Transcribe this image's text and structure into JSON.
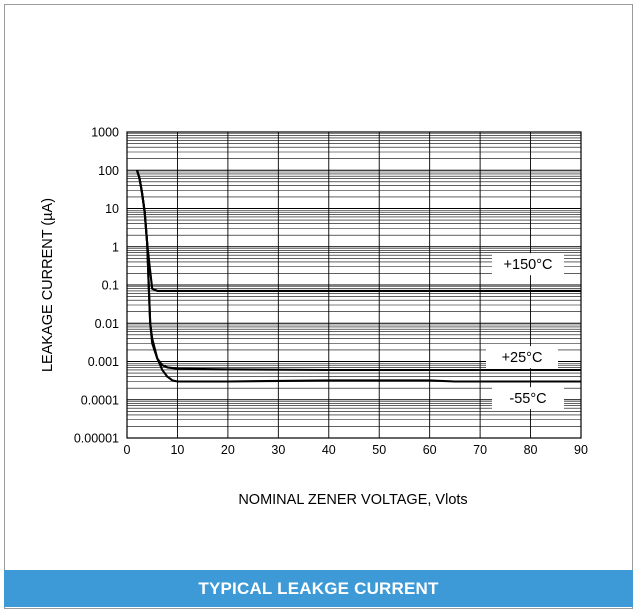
{
  "chart_data": {
    "type": "line",
    "title": "TYPICAL LEAKGE CURRENT",
    "xlabel": "NOMINAL ZENER VOLTAGE, Vlots",
    "ylabel": "LEAKAGE CURRENT (µA)",
    "xlim": [
      0,
      90
    ],
    "ylim": [
      1e-05,
      1000
    ],
    "yscale": "log",
    "grid": true,
    "x_ticks": [
      "0",
      "10",
      "20",
      "30",
      "40",
      "50",
      "60",
      "70",
      "80",
      "90"
    ],
    "y_ticks": [
      "0.00001",
      "0.0001",
      "0.001",
      "0.01",
      "0.1",
      "1",
      "10",
      "100",
      "1000"
    ],
    "series": [
      {
        "name": "+150°C",
        "x": [
          2,
          2.5,
          3,
          3.5,
          4,
          4.5,
          5,
          6,
          8,
          10,
          20,
          40,
          60,
          80,
          90
        ],
        "y": [
          100,
          60,
          25,
          8,
          1.2,
          0.3,
          0.08,
          0.07,
          0.07,
          0.07,
          0.07,
          0.07,
          0.07,
          0.07,
          0.07
        ]
      },
      {
        "name": "+25°C",
        "x": [
          2,
          2.5,
          3,
          3.5,
          4,
          4.3,
          4.6,
          5,
          6,
          7,
          8,
          10,
          20,
          40,
          60,
          80,
          90
        ],
        "y": [
          100,
          60,
          25,
          8,
          1.2,
          0.1,
          0.01,
          0.003,
          0.0012,
          0.0008,
          0.0007,
          0.00065,
          0.00062,
          0.0006,
          0.0006,
          0.0006,
          0.0006
        ]
      },
      {
        "name": "-55°C",
        "x": [
          2,
          2.5,
          3,
          3.5,
          4,
          4.3,
          4.6,
          5,
          6,
          7,
          8,
          9,
          10,
          15,
          20,
          40,
          50,
          60,
          65,
          70,
          80,
          90
        ],
        "y": [
          100,
          60,
          25,
          8,
          1.2,
          0.1,
          0.01,
          0.004,
          0.0012,
          0.0006,
          0.0004,
          0.00032,
          0.0003,
          0.0003,
          0.0003,
          0.00032,
          0.00032,
          0.00032,
          0.0003,
          0.0003,
          0.0003,
          0.0003
        ]
      }
    ],
    "annotations": [
      "+150°C",
      "+25°C",
      "-55°C"
    ]
  }
}
